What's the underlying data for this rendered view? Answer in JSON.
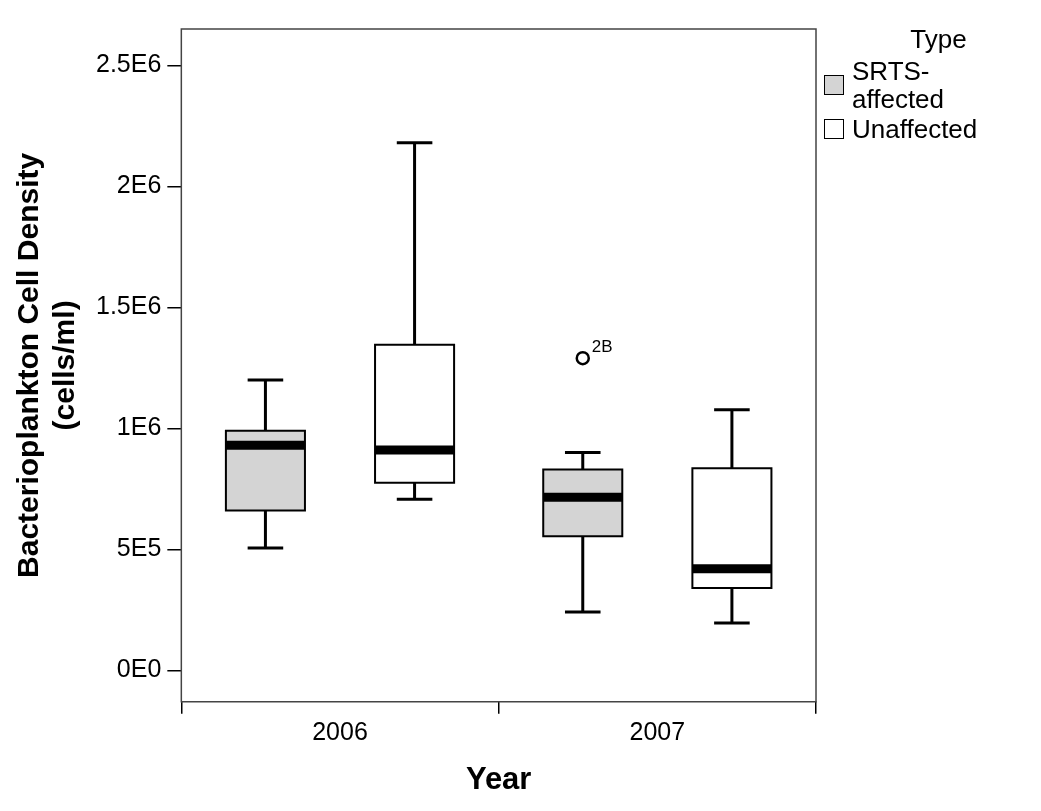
{
  "chart_data": {
    "type": "box",
    "xlabel": "Year",
    "ylabel": "Bacterioplankton Cell Density\n(cells/ml)",
    "legend_title": "Type",
    "legend": "right",
    "grid": false,
    "categories": [
      "2006",
      "2007"
    ],
    "ylim": [
      -130000,
      2650000
    ],
    "yticks": [
      {
        "value": 0,
        "label": "0E0"
      },
      {
        "value": 500000,
        "label": "5E5"
      },
      {
        "value": 1000000,
        "label": "1E6"
      },
      {
        "value": 1500000,
        "label": "1.5E6"
      },
      {
        "value": 2000000,
        "label": "2E6"
      },
      {
        "value": 2500000,
        "label": "2.5E6"
      }
    ],
    "series": [
      {
        "name": "SRTS-affected",
        "color": "#d4d4d4",
        "boxes": [
          {
            "low": 505000,
            "q1": 660000,
            "median": 930000,
            "q3": 990000,
            "high": 1200000
          },
          {
            "low": 241000,
            "q1": 554000,
            "median": 715000,
            "q3": 830000,
            "high": 900000,
            "outliers": [
              1290000
            ]
          }
        ]
      },
      {
        "name": "Unaffected",
        "color": "#ffffff",
        "boxes": [
          {
            "low": 707000,
            "q1": 775000,
            "median": 910000,
            "q3": 1345000,
            "high": 2180000
          },
          {
            "low": 196000,
            "q1": 340000,
            "median": 420000,
            "q3": 835000,
            "high": 1077000
          }
        ]
      }
    ],
    "annotations": [
      "2B"
    ]
  }
}
